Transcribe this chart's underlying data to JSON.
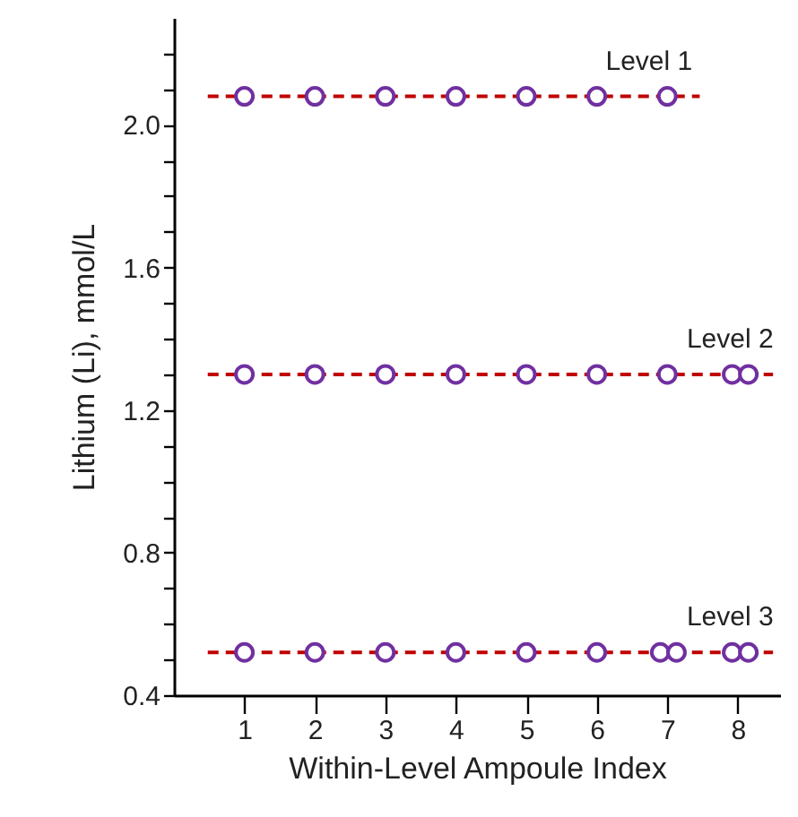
{
  "chart_data": {
    "type": "scatter",
    "xlabel": "Within-Level Ampoule Index",
    "ylabel": "Lithium (Li), mmol/L",
    "xlim": [
      0,
      8.6
    ],
    "xticks": [
      1,
      2,
      3,
      4,
      5,
      6,
      7,
      8
    ],
    "ylim": [
      0.4,
      2.3
    ],
    "yticks": [
      {
        "value": 0.4,
        "label": "0.4"
      },
      {
        "value": 0.5,
        "label": null
      },
      {
        "value": 0.6,
        "label": null
      },
      {
        "value": 0.7,
        "label": null
      },
      {
        "value": 0.8,
        "label": "0.8"
      },
      {
        "value": 0.9,
        "label": null
      },
      {
        "value": 1.0,
        "label": null
      },
      {
        "value": 1.1,
        "label": null
      },
      {
        "value": 1.2,
        "label": "1.2"
      },
      {
        "value": 1.3,
        "label": null
      },
      {
        "value": 1.4,
        "label": null
      },
      {
        "value": 1.5,
        "label": null
      },
      {
        "value": 1.6,
        "label": "1.6"
      },
      {
        "value": 1.7,
        "label": null
      },
      {
        "value": 1.8,
        "label": null
      },
      {
        "value": 1.9,
        "label": null
      },
      {
        "value": 2.0,
        "label": "2.0"
      },
      {
        "value": 2.1,
        "label": null
      },
      {
        "value": 2.2,
        "label": null
      }
    ],
    "grid": false,
    "marker": "circle",
    "series": [
      {
        "type": "line",
        "color": "#c00000",
        "line_style": "dashed",
        "marker": "none",
        "x": [
          0.48,
          7.46
        ],
        "values": [
          2.08,
          2.08
        ]
      },
      {
        "type": "line",
        "color": "#c00000",
        "line_style": "dashed",
        "marker": "none",
        "x": [
          0.48,
          8.5
        ],
        "values": [
          1.3,
          1.3
        ]
      },
      {
        "type": "line",
        "color": "#c00000",
        "line_style": "dashed",
        "marker": "none",
        "x": [
          0.48,
          8.5
        ],
        "values": [
          0.52,
          0.52
        ]
      },
      {
        "name": "Level 1",
        "color": "#7030a0",
        "x": [
          1,
          2,
          3,
          4,
          5,
          6,
          7
        ],
        "values": [
          2.08,
          2.08,
          2.08,
          2.08,
          2.08,
          2.08,
          2.08
        ]
      },
      {
        "name": "Level 2",
        "color": "#7030a0",
        "x": [
          1,
          2,
          3,
          4,
          5,
          6,
          7,
          7.92,
          8.15
        ],
        "values": [
          1.3,
          1.3,
          1.3,
          1.3,
          1.3,
          1.3,
          1.3,
          1.3,
          1.3
        ]
      },
      {
        "name": "Level 3",
        "color": "#7030a0",
        "x": [
          1,
          2,
          3,
          4,
          5,
          6,
          6.9,
          7.13,
          7.92,
          8.15
        ],
        "values": [
          0.52,
          0.52,
          0.52,
          0.52,
          0.52,
          0.52,
          0.52,
          0.52,
          0.52,
          0.52
        ]
      }
    ]
  }
}
